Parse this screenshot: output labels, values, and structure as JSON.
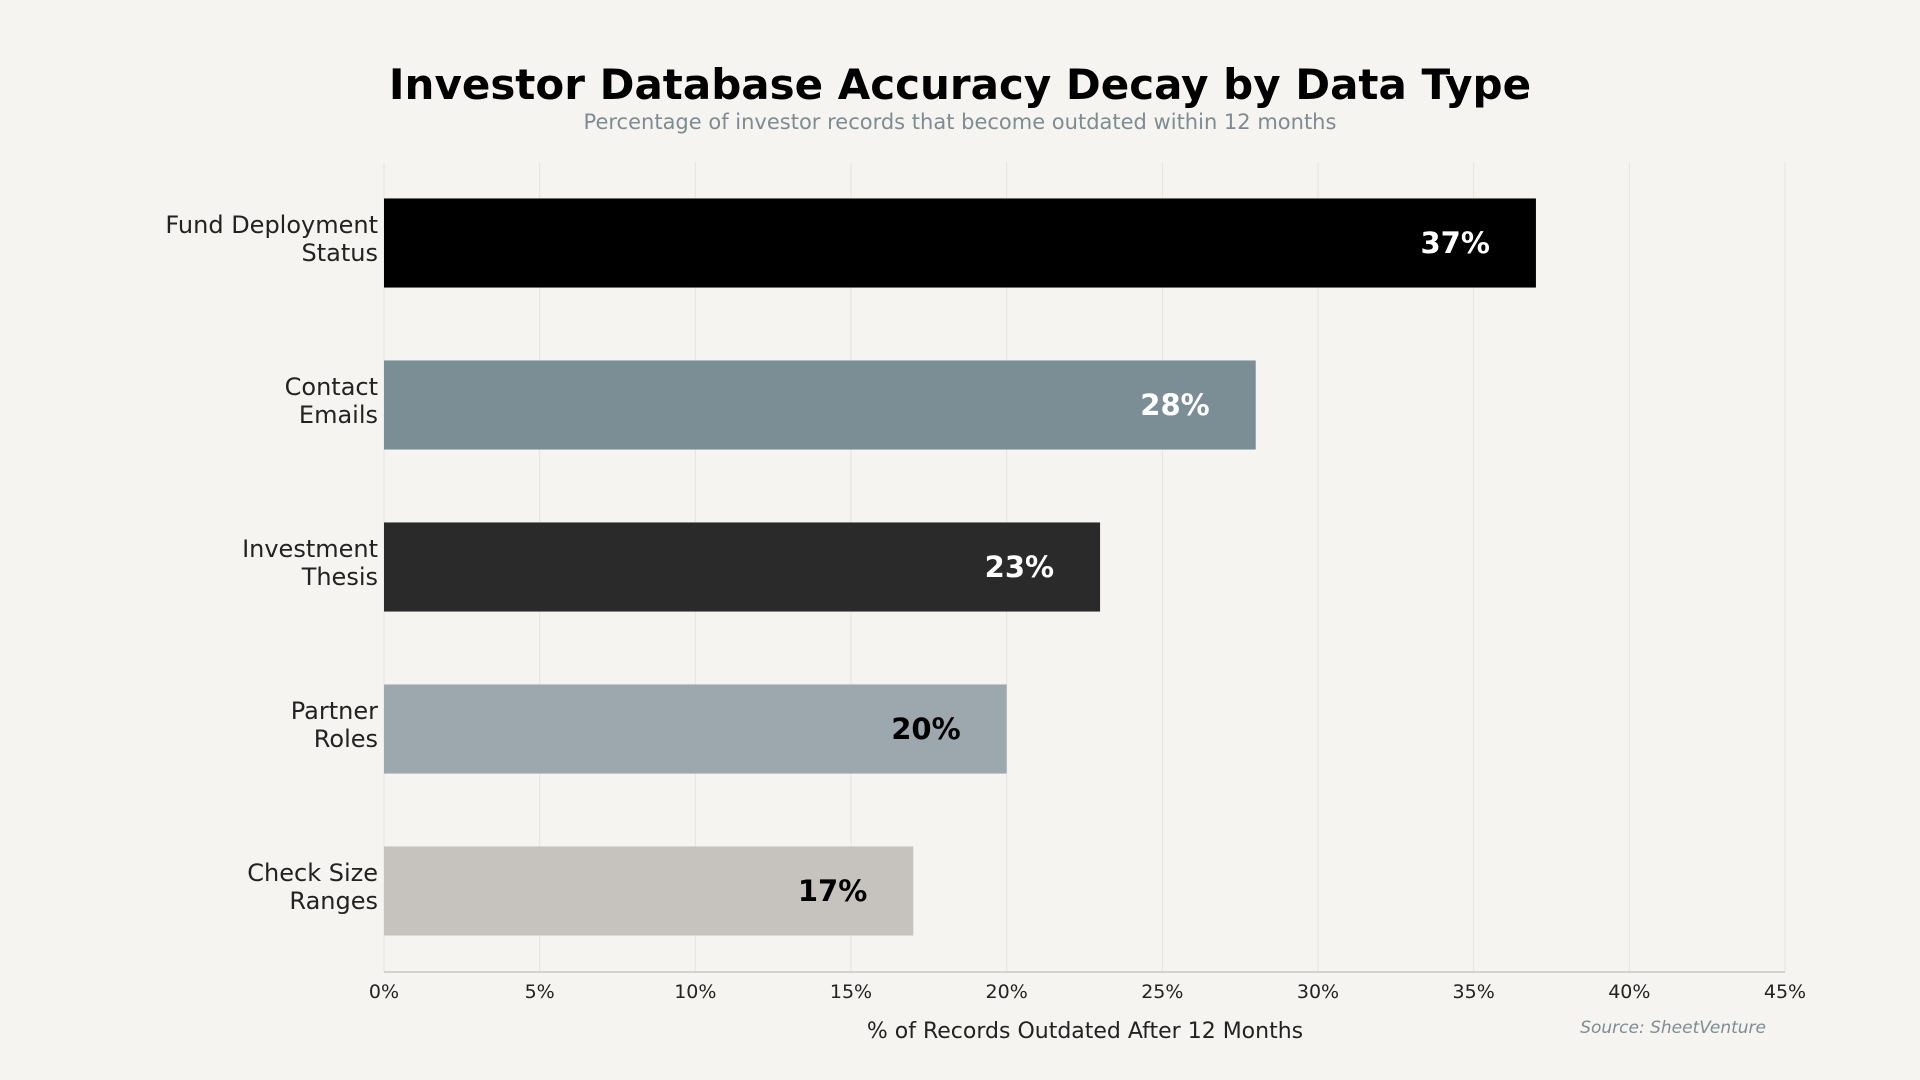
{
  "chart_data": {
    "type": "bar",
    "orientation": "horizontal",
    "title": "Investor Database Accuracy Decay by Data Type",
    "subtitle": "Percentage of investor records that become outdated within 12 months",
    "xlabel": "% of Records Outdated After 12 Months",
    "ylabel": "",
    "source": "Source: SheetVenture",
    "categories": [
      [
        "Fund Deployment",
        "Status"
      ],
      [
        "Contact",
        "Emails"
      ],
      [
        "Investment",
        "Thesis"
      ],
      [
        "Partner",
        "Roles"
      ],
      [
        "Check Size",
        "Ranges"
      ]
    ],
    "values": [
      37,
      28,
      23,
      20,
      17
    ],
    "value_labels": [
      "37%",
      "28%",
      "23%",
      "20%",
      "17%"
    ],
    "bar_colors": [
      "#000000",
      "#7b8e95",
      "#2a2a2a",
      "#9ca8ad",
      "#c6c3be"
    ],
    "label_colors": [
      "#ffffff",
      "#ffffff",
      "#ffffff",
      "#000000",
      "#000000"
    ],
    "xlim": [
      0,
      45
    ],
    "xticks": [
      0,
      5,
      10,
      15,
      20,
      25,
      30,
      35,
      40,
      45
    ],
    "xtick_labels": [
      "0%",
      "5%",
      "10%",
      "15%",
      "20%",
      "25%",
      "30%",
      "35%",
      "40%",
      "45%"
    ],
    "grid": "vertical",
    "legend": "none"
  }
}
